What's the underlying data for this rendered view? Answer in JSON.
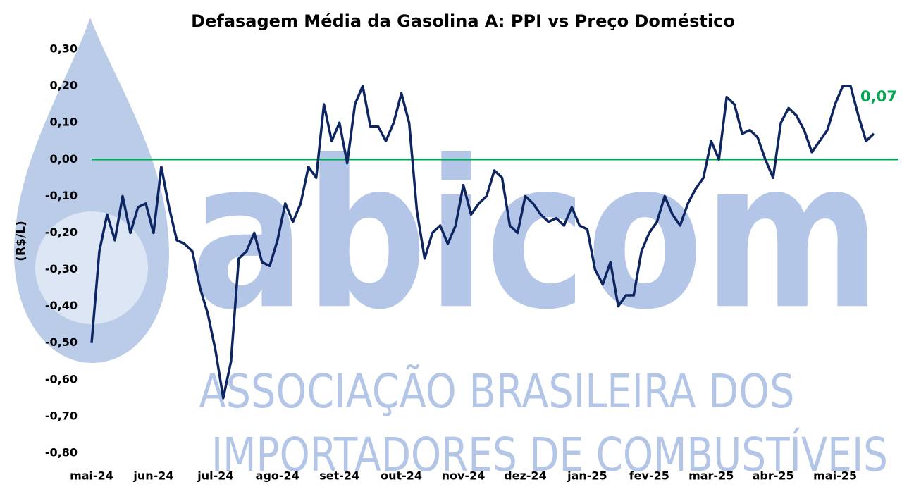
{
  "chart_data": {
    "type": "line",
    "title": "Defasagem Média da Gasolina A: PPI vs Preço Doméstico",
    "y_label": "(R$/L)",
    "watermark": {
      "logo": "abicom",
      "line1": "ASSOCIAÇÃO BRASILEIRA DOS",
      "line2": "IMPORTADORES DE COMBUSTÍVEIS"
    },
    "categories": [
      "mai-24",
      null,
      null,
      null,
      null,
      null,
      null,
      null,
      "jun-24",
      null,
      null,
      null,
      null,
      null,
      null,
      null,
      "jul-24",
      null,
      null,
      null,
      null,
      null,
      null,
      null,
      "ago-24",
      null,
      null,
      null,
      null,
      null,
      null,
      null,
      "set-24",
      null,
      null,
      null,
      null,
      null,
      null,
      null,
      "out-24",
      null,
      null,
      null,
      null,
      null,
      null,
      null,
      "nov-24",
      null,
      null,
      null,
      null,
      null,
      null,
      null,
      "dez-24",
      null,
      null,
      null,
      null,
      null,
      null,
      null,
      "jan-25",
      null,
      null,
      null,
      null,
      null,
      null,
      null,
      "fev-25",
      null,
      null,
      null,
      null,
      null,
      null,
      null,
      "mar-25",
      null,
      null,
      null,
      null,
      null,
      null,
      null,
      "abr-25",
      null,
      null,
      null,
      null,
      null,
      null,
      null,
      "mai-25",
      null,
      null,
      null,
      null,
      null
    ],
    "series": [
      {
        "name": "Defasagem",
        "color": "#0d2560",
        "values": [
          -0.5,
          -0.25,
          -0.15,
          -0.22,
          -0.1,
          -0.2,
          -0.13,
          -0.12,
          -0.2,
          -0.02,
          -0.13,
          -0.22,
          -0.23,
          -0.25,
          -0.35,
          -0.42,
          -0.52,
          -0.65,
          -0.55,
          -0.27,
          -0.25,
          -0.2,
          -0.28,
          -0.29,
          -0.22,
          -0.12,
          -0.17,
          -0.12,
          -0.02,
          -0.05,
          0.15,
          0.05,
          0.1,
          -0.01,
          0.15,
          0.2,
          0.09,
          0.09,
          0.05,
          0.1,
          0.18,
          0.1,
          -0.14,
          -0.27,
          -0.2,
          -0.18,
          -0.23,
          -0.18,
          -0.07,
          -0.15,
          -0.12,
          -0.1,
          -0.03,
          -0.05,
          -0.18,
          -0.2,
          -0.1,
          -0.12,
          -0.15,
          -0.17,
          -0.16,
          -0.18,
          -0.13,
          -0.18,
          -0.19,
          -0.3,
          -0.34,
          -0.28,
          -0.4,
          -0.37,
          -0.37,
          -0.25,
          -0.2,
          -0.17,
          -0.1,
          -0.15,
          -0.18,
          -0.12,
          -0.08,
          -0.05,
          0.05,
          0.0,
          0.17,
          0.15,
          0.07,
          0.08,
          0.06,
          0.0,
          -0.05,
          0.1,
          0.14,
          0.12,
          0.08,
          0.02,
          0.05,
          0.08,
          0.15,
          0.2,
          0.2,
          0.12,
          0.05,
          0.07
        ]
      }
    ],
    "ylim": [
      -0.8,
      0.3
    ],
    "yticks": [
      {
        "value": -0.8,
        "label": "-0,80"
      },
      {
        "value": -0.7,
        "label": "-0,70"
      },
      {
        "value": -0.6,
        "label": "-0,60"
      },
      {
        "value": -0.5,
        "label": "-0,50"
      },
      {
        "value": -0.4,
        "label": "-0,40"
      },
      {
        "value": -0.3,
        "label": "-0,30"
      },
      {
        "value": -0.2,
        "label": "-0,20"
      },
      {
        "value": -0.1,
        "label": "-0,10"
      },
      {
        "value": 0,
        "label": "0,00"
      },
      {
        "value": 0.1,
        "label": "0,10"
      },
      {
        "value": 0.2,
        "label": "0,20"
      },
      {
        "value": 0.3,
        "label": "0,30"
      }
    ],
    "reference_line": {
      "value": 0,
      "color": "#00a651"
    },
    "annotation": {
      "text": "0,07",
      "color": "#00a651"
    },
    "grid": false
  }
}
